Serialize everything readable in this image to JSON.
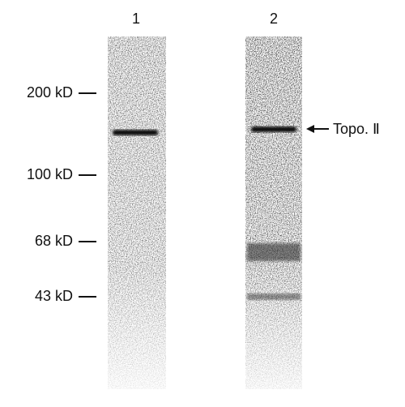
{
  "lanes": [
    {
      "label": "1"
    },
    {
      "label": "2"
    }
  ],
  "markers": [
    "200 kD",
    "100 kD",
    "68 kD",
    "43 kD"
  ],
  "annotation": "Topo. Ⅱ"
}
